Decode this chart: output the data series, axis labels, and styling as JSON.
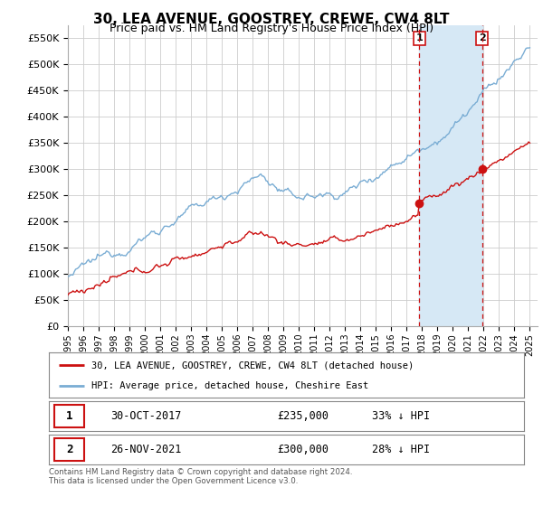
{
  "title": "30, LEA AVENUE, GOOSTREY, CREWE, CW4 8LT",
  "subtitle": "Price paid vs. HM Land Registry's House Price Index (HPI)",
  "ylabel_ticks": [
    "£0",
    "£50K",
    "£100K",
    "£150K",
    "£200K",
    "£250K",
    "£300K",
    "£350K",
    "£400K",
    "£450K",
    "£500K",
    "£550K"
  ],
  "ytick_vals": [
    0,
    50000,
    100000,
    150000,
    200000,
    250000,
    300000,
    350000,
    400000,
    450000,
    500000,
    550000
  ],
  "ylim": [
    0,
    575000
  ],
  "xlim_start": 1995.0,
  "xlim_end": 2025.5,
  "hpi_color": "#7aadd4",
  "hpi_fill_color": "#d6e8f5",
  "price_color": "#cc1111",
  "marker1_date": 2017.83,
  "marker1_price": 235000,
  "marker2_date": 2021.9,
  "marker2_price": 300000,
  "legend_line1": "30, LEA AVENUE, GOOSTREY, CREWE, CW4 8LT (detached house)",
  "legend_line2": "HPI: Average price, detached house, Cheshire East",
  "table_row1_num": "1",
  "table_row1_date": "30-OCT-2017",
  "table_row1_price": "£235,000",
  "table_row1_hpi": "33% ↓ HPI",
  "table_row2_num": "2",
  "table_row2_date": "26-NOV-2021",
  "table_row2_price": "£300,000",
  "table_row2_hpi": "28% ↓ HPI",
  "footer": "Contains HM Land Registry data © Crown copyright and database right 2024.\nThis data is licensed under the Open Government Licence v3.0.",
  "background_color": "#ffffff",
  "grid_color": "#cccccc",
  "marker_box_color": "#cc1111",
  "title_fontsize": 11,
  "subtitle_fontsize": 9
}
